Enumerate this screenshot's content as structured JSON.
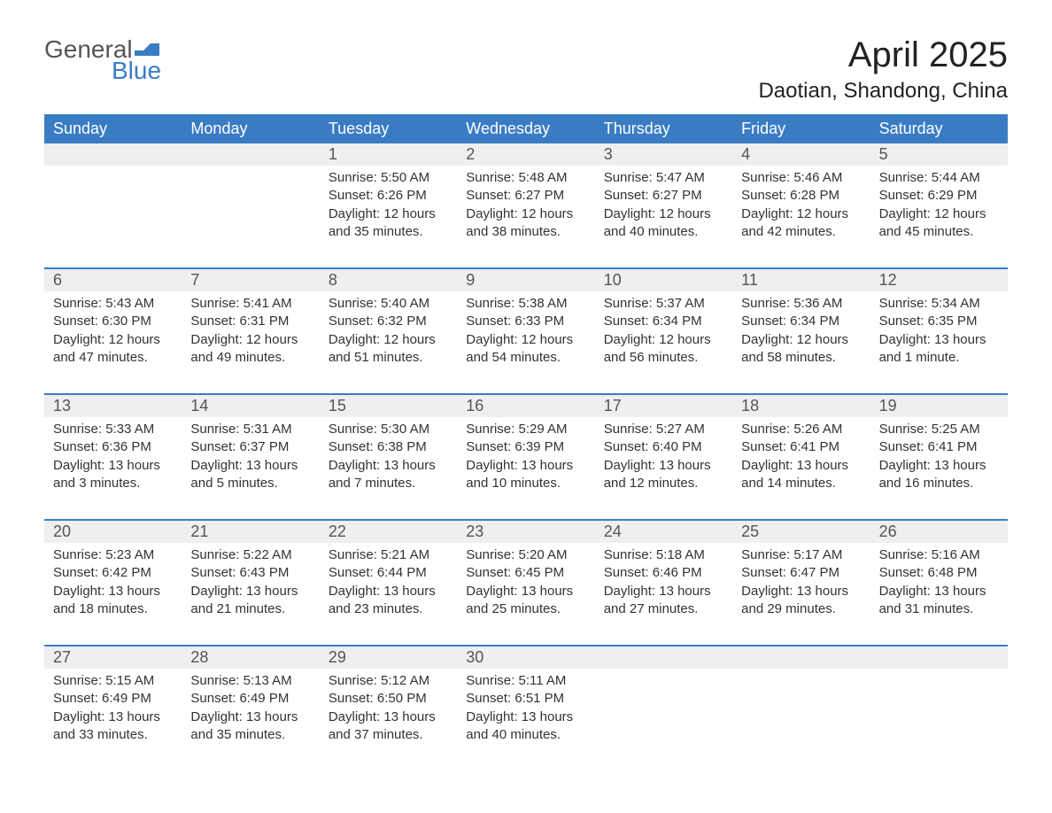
{
  "logo": {
    "text1": "General",
    "text2": "Blue",
    "icon_color": "#3a7cc4"
  },
  "title": "April 2025",
  "subtitle": "Daotian, Shandong, China",
  "colors": {
    "header_bg": "#3a7cc4",
    "header_text": "#ffffff",
    "daynum_bg": "#efefef",
    "week_border": "#3a7cc4",
    "body_bg": "#ffffff",
    "text": "#333333"
  },
  "day_names": [
    "Sunday",
    "Monday",
    "Tuesday",
    "Wednesday",
    "Thursday",
    "Friday",
    "Saturday"
  ],
  "weeks": [
    {
      "nums": [
        "",
        "",
        "1",
        "2",
        "3",
        "4",
        "5"
      ],
      "cells": [
        null,
        null,
        {
          "sunrise": "Sunrise: 5:50 AM",
          "sunset": "Sunset: 6:26 PM",
          "daylight1": "Daylight: 12 hours",
          "daylight2": "and 35 minutes."
        },
        {
          "sunrise": "Sunrise: 5:48 AM",
          "sunset": "Sunset: 6:27 PM",
          "daylight1": "Daylight: 12 hours",
          "daylight2": "and 38 minutes."
        },
        {
          "sunrise": "Sunrise: 5:47 AM",
          "sunset": "Sunset: 6:27 PM",
          "daylight1": "Daylight: 12 hours",
          "daylight2": "and 40 minutes."
        },
        {
          "sunrise": "Sunrise: 5:46 AM",
          "sunset": "Sunset: 6:28 PM",
          "daylight1": "Daylight: 12 hours",
          "daylight2": "and 42 minutes."
        },
        {
          "sunrise": "Sunrise: 5:44 AM",
          "sunset": "Sunset: 6:29 PM",
          "daylight1": "Daylight: 12 hours",
          "daylight2": "and 45 minutes."
        }
      ]
    },
    {
      "nums": [
        "6",
        "7",
        "8",
        "9",
        "10",
        "11",
        "12"
      ],
      "cells": [
        {
          "sunrise": "Sunrise: 5:43 AM",
          "sunset": "Sunset: 6:30 PM",
          "daylight1": "Daylight: 12 hours",
          "daylight2": "and 47 minutes."
        },
        {
          "sunrise": "Sunrise: 5:41 AM",
          "sunset": "Sunset: 6:31 PM",
          "daylight1": "Daylight: 12 hours",
          "daylight2": "and 49 minutes."
        },
        {
          "sunrise": "Sunrise: 5:40 AM",
          "sunset": "Sunset: 6:32 PM",
          "daylight1": "Daylight: 12 hours",
          "daylight2": "and 51 minutes."
        },
        {
          "sunrise": "Sunrise: 5:38 AM",
          "sunset": "Sunset: 6:33 PM",
          "daylight1": "Daylight: 12 hours",
          "daylight2": "and 54 minutes."
        },
        {
          "sunrise": "Sunrise: 5:37 AM",
          "sunset": "Sunset: 6:34 PM",
          "daylight1": "Daylight: 12 hours",
          "daylight2": "and 56 minutes."
        },
        {
          "sunrise": "Sunrise: 5:36 AM",
          "sunset": "Sunset: 6:34 PM",
          "daylight1": "Daylight: 12 hours",
          "daylight2": "and 58 minutes."
        },
        {
          "sunrise": "Sunrise: 5:34 AM",
          "sunset": "Sunset: 6:35 PM",
          "daylight1": "Daylight: 13 hours",
          "daylight2": "and 1 minute."
        }
      ]
    },
    {
      "nums": [
        "13",
        "14",
        "15",
        "16",
        "17",
        "18",
        "19"
      ],
      "cells": [
        {
          "sunrise": "Sunrise: 5:33 AM",
          "sunset": "Sunset: 6:36 PM",
          "daylight1": "Daylight: 13 hours",
          "daylight2": "and 3 minutes."
        },
        {
          "sunrise": "Sunrise: 5:31 AM",
          "sunset": "Sunset: 6:37 PM",
          "daylight1": "Daylight: 13 hours",
          "daylight2": "and 5 minutes."
        },
        {
          "sunrise": "Sunrise: 5:30 AM",
          "sunset": "Sunset: 6:38 PM",
          "daylight1": "Daylight: 13 hours",
          "daylight2": "and 7 minutes."
        },
        {
          "sunrise": "Sunrise: 5:29 AM",
          "sunset": "Sunset: 6:39 PM",
          "daylight1": "Daylight: 13 hours",
          "daylight2": "and 10 minutes."
        },
        {
          "sunrise": "Sunrise: 5:27 AM",
          "sunset": "Sunset: 6:40 PM",
          "daylight1": "Daylight: 13 hours",
          "daylight2": "and 12 minutes."
        },
        {
          "sunrise": "Sunrise: 5:26 AM",
          "sunset": "Sunset: 6:41 PM",
          "daylight1": "Daylight: 13 hours",
          "daylight2": "and 14 minutes."
        },
        {
          "sunrise": "Sunrise: 5:25 AM",
          "sunset": "Sunset: 6:41 PM",
          "daylight1": "Daylight: 13 hours",
          "daylight2": "and 16 minutes."
        }
      ]
    },
    {
      "nums": [
        "20",
        "21",
        "22",
        "23",
        "24",
        "25",
        "26"
      ],
      "cells": [
        {
          "sunrise": "Sunrise: 5:23 AM",
          "sunset": "Sunset: 6:42 PM",
          "daylight1": "Daylight: 13 hours",
          "daylight2": "and 18 minutes."
        },
        {
          "sunrise": "Sunrise: 5:22 AM",
          "sunset": "Sunset: 6:43 PM",
          "daylight1": "Daylight: 13 hours",
          "daylight2": "and 21 minutes."
        },
        {
          "sunrise": "Sunrise: 5:21 AM",
          "sunset": "Sunset: 6:44 PM",
          "daylight1": "Daylight: 13 hours",
          "daylight2": "and 23 minutes."
        },
        {
          "sunrise": "Sunrise: 5:20 AM",
          "sunset": "Sunset: 6:45 PM",
          "daylight1": "Daylight: 13 hours",
          "daylight2": "and 25 minutes."
        },
        {
          "sunrise": "Sunrise: 5:18 AM",
          "sunset": "Sunset: 6:46 PM",
          "daylight1": "Daylight: 13 hours",
          "daylight2": "and 27 minutes."
        },
        {
          "sunrise": "Sunrise: 5:17 AM",
          "sunset": "Sunset: 6:47 PM",
          "daylight1": "Daylight: 13 hours",
          "daylight2": "and 29 minutes."
        },
        {
          "sunrise": "Sunrise: 5:16 AM",
          "sunset": "Sunset: 6:48 PM",
          "daylight1": "Daylight: 13 hours",
          "daylight2": "and 31 minutes."
        }
      ]
    },
    {
      "nums": [
        "27",
        "28",
        "29",
        "30",
        "",
        "",
        ""
      ],
      "cells": [
        {
          "sunrise": "Sunrise: 5:15 AM",
          "sunset": "Sunset: 6:49 PM",
          "daylight1": "Daylight: 13 hours",
          "daylight2": "and 33 minutes."
        },
        {
          "sunrise": "Sunrise: 5:13 AM",
          "sunset": "Sunset: 6:49 PM",
          "daylight1": "Daylight: 13 hours",
          "daylight2": "and 35 minutes."
        },
        {
          "sunrise": "Sunrise: 5:12 AM",
          "sunset": "Sunset: 6:50 PM",
          "daylight1": "Daylight: 13 hours",
          "daylight2": "and 37 minutes."
        },
        {
          "sunrise": "Sunrise: 5:11 AM",
          "sunset": "Sunset: 6:51 PM",
          "daylight1": "Daylight: 13 hours",
          "daylight2": "and 40 minutes."
        },
        null,
        null,
        null
      ]
    }
  ]
}
